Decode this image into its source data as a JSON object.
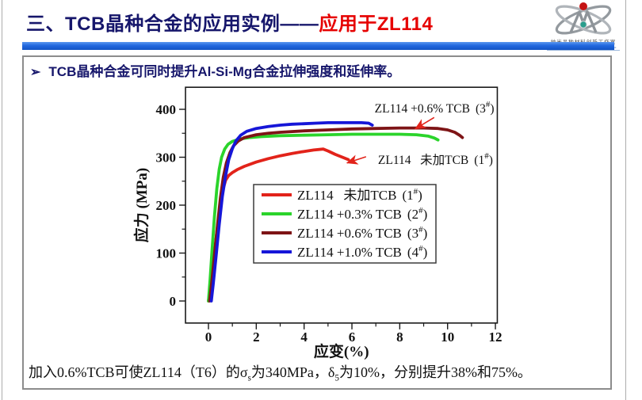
{
  "header": {
    "title_main": "三、TCB晶种合金的应用实例——",
    "title_accent": "应用于ZL114",
    "main_color": "#16166b",
    "accent_color": "#e60000"
  },
  "logo": {
    "org_cn": "纳米晶种材料创新工作室",
    "org_en": "Nano Seeding And Materials Innovation Studio"
  },
  "content": {
    "bullet_marker": "➢",
    "bullet_text": "TCB晶种合金可同时提升Al-Si-Mg合金拉伸强度和延伸率。"
  },
  "footer": {
    "part1": "加入0.6%TCB可使ZL114（T6）的σ",
    "sub1": "s",
    "part2": "为340MPa，δ",
    "sub2": "5",
    "part3": "为10%，分别提升38%和75%。"
  },
  "chart_data": {
    "type": "line",
    "title": "",
    "xlabel": "应变(%)",
    "ylabel": "应力 (MPa)",
    "xlim": [
      -0.96,
      12.08
    ],
    "ylim": [
      -46,
      446
    ],
    "xticks": [
      0,
      2,
      4,
      6,
      8,
      10,
      12
    ],
    "xminorticks": [
      1,
      3,
      5,
      7,
      9,
      11
    ],
    "yticks": [
      0,
      100,
      200,
      300,
      400
    ],
    "yminorticks": [
      50,
      150,
      250,
      350
    ],
    "grid": false,
    "legend_position": "inside lower-center",
    "sup_char": "#",
    "frame_color": "#1a1a1a",
    "series": [
      {
        "name": "ZL114   未加TCB",
        "id": "1",
        "color": "#e2231a",
        "points": [
          [
            0,
            0
          ],
          [
            0.08,
            25
          ],
          [
            0.2,
            75
          ],
          [
            0.33,
            135
          ],
          [
            0.45,
            185
          ],
          [
            0.58,
            228
          ],
          [
            0.72,
            252
          ],
          [
            0.85,
            262
          ],
          [
            1.0,
            268
          ],
          [
            1.2,
            274
          ],
          [
            1.5,
            281
          ],
          [
            2.0,
            290
          ],
          [
            2.5,
            297
          ],
          [
            3.0,
            303
          ],
          [
            3.5,
            308
          ],
          [
            4.0,
            312
          ],
          [
            4.4,
            315
          ],
          [
            4.8,
            317
          ],
          [
            5.0,
            313
          ],
          [
            5.3,
            306
          ],
          [
            5.6,
            300
          ],
          [
            5.85,
            295
          ]
        ]
      },
      {
        "name": "ZL114 +0.3% TCB",
        "id": "2",
        "color": "#2bd42b",
        "points": [
          [
            0,
            0
          ],
          [
            0.07,
            45
          ],
          [
            0.15,
            105
          ],
          [
            0.25,
            175
          ],
          [
            0.35,
            235
          ],
          [
            0.45,
            275
          ],
          [
            0.55,
            300
          ],
          [
            0.68,
            317
          ],
          [
            0.82,
            327
          ],
          [
            1.0,
            333
          ],
          [
            1.3,
            338
          ],
          [
            1.7,
            341
          ],
          [
            2.2,
            343
          ],
          [
            3.0,
            345
          ],
          [
            4.0,
            346
          ],
          [
            5.0,
            347
          ],
          [
            6.0,
            348
          ],
          [
            7.0,
            348
          ],
          [
            8.0,
            348
          ],
          [
            8.7,
            347
          ],
          [
            9.2,
            344
          ],
          [
            9.45,
            340
          ],
          [
            9.6,
            336
          ]
        ]
      },
      {
        "name": "ZL114 +0.6% TCB",
        "id": "3",
        "color": "#7e1416",
        "points": [
          [
            0.05,
            0
          ],
          [
            0.13,
            35
          ],
          [
            0.25,
            95
          ],
          [
            0.38,
            160
          ],
          [
            0.5,
            215
          ],
          [
            0.62,
            258
          ],
          [
            0.75,
            288
          ],
          [
            0.9,
            310
          ],
          [
            1.05,
            324
          ],
          [
            1.25,
            334
          ],
          [
            1.5,
            341
          ],
          [
            2.0,
            347
          ],
          [
            2.5,
            350
          ],
          [
            3.0,
            352
          ],
          [
            4.0,
            355
          ],
          [
            5.0,
            357
          ],
          [
            6.0,
            359
          ],
          [
            7.0,
            360
          ],
          [
            8.0,
            361
          ],
          [
            9.0,
            361
          ],
          [
            9.6,
            360
          ],
          [
            10.0,
            357
          ],
          [
            10.3,
            352
          ],
          [
            10.5,
            346
          ],
          [
            10.62,
            341
          ]
        ]
      },
      {
        "name": "ZL114 +1.0% TCB",
        "id": "4",
        "color": "#1616d8",
        "points": [
          [
            0.12,
            0
          ],
          [
            0.2,
            35
          ],
          [
            0.32,
            95
          ],
          [
            0.45,
            160
          ],
          [
            0.58,
            218
          ],
          [
            0.72,
            262
          ],
          [
            0.85,
            295
          ],
          [
            1.0,
            318
          ],
          [
            1.15,
            334
          ],
          [
            1.35,
            346
          ],
          [
            1.6,
            354
          ],
          [
            2.0,
            360
          ],
          [
            2.5,
            364
          ],
          [
            3.0,
            367
          ],
          [
            3.5,
            369
          ],
          [
            4.0,
            370
          ],
          [
            4.5,
            371
          ],
          [
            5.0,
            372
          ],
          [
            5.5,
            372
          ],
          [
            6.0,
            372
          ],
          [
            6.4,
            372
          ],
          [
            6.7,
            371
          ],
          [
            6.85,
            367
          ]
        ]
      }
    ],
    "annotations": [
      {
        "text": "ZL114 +0.6% TCB",
        "id": "3",
        "x": 6.95,
        "y": 393,
        "arrow": {
          "x1": 9.44,
          "y1": 383,
          "x2": 8.64,
          "y2": 359
        },
        "text_color": "#111111",
        "arrow_color": "#e2231a"
      },
      {
        "text": "ZL114   未加TCB",
        "id": "1",
        "x": 7.09,
        "y": 286,
        "arrow": {
          "x1": 6.59,
          "y1": 301,
          "x2": 5.79,
          "y2": 288
        },
        "text_color": "#111111",
        "arrow_color": "#e2231a"
      }
    ]
  }
}
